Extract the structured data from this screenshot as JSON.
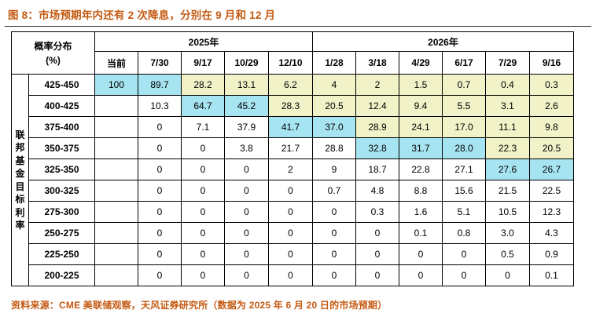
{
  "title": "图 8：市场预期年内还有 2 次降息，分别在 9 月和 12 月",
  "source_note": "资料来源：CME 美联储观察，天风证券研究所（数据为 2025 年 6 月 20 日的市场预期）",
  "colors": {
    "accent_text": "#c45911",
    "column_max_highlight": "#a7e4f1",
    "above_max_highlight": "#f1f2c8",
    "table_border": "#000000"
  },
  "chart_data": {
    "type": "table",
    "corner_label": [
      "概率分布",
      "(%)"
    ],
    "side_label": "联邦基金目标利率",
    "year_groups": [
      {
        "label": "2025年",
        "span": 5
      },
      {
        "label": "2026年",
        "span": 6
      }
    ],
    "columns": [
      "当前",
      "7/30",
      "9/17",
      "10/29",
      "12/10",
      "1/28",
      "3/18",
      "4/29",
      "6/17",
      "7/29",
      "9/16"
    ],
    "rows": [
      {
        "label": "425-450",
        "values": [
          "100",
          "89.7",
          "28.2",
          "13.1",
          "6.2",
          "4",
          "2",
          "1.5",
          "0.7",
          "0.4",
          "0.3"
        ]
      },
      {
        "label": "400-425",
        "values": [
          "",
          "10.3",
          "64.7",
          "45.2",
          "28.3",
          "20.5",
          "12.4",
          "9.4",
          "5.5",
          "3.1",
          "2.6"
        ]
      },
      {
        "label": "375-400",
        "values": [
          "",
          "0",
          "7.1",
          "37.9",
          "41.7",
          "37.0",
          "28.9",
          "24.1",
          "17.0",
          "11.1",
          "9.8"
        ]
      },
      {
        "label": "350-375",
        "values": [
          "",
          "0",
          "0",
          "3.8",
          "21.7",
          "28.8",
          "32.8",
          "31.7",
          "28.0",
          "22.3",
          "20.5"
        ]
      },
      {
        "label": "325-350",
        "values": [
          "",
          "0",
          "0",
          "0",
          "2",
          "9",
          "18.7",
          "22.8",
          "27.1",
          "27.6",
          "26.7"
        ]
      },
      {
        "label": "300-325",
        "values": [
          "",
          "0",
          "0",
          "0",
          "0",
          "0.7",
          "4.8",
          "8.8",
          "15.6",
          "21.5",
          "22.5"
        ]
      },
      {
        "label": "275-300",
        "values": [
          "",
          "0",
          "0",
          "0",
          "0",
          "0",
          "0.3",
          "1.6",
          "5.1",
          "10.5",
          "12.3"
        ]
      },
      {
        "label": "250-275",
        "values": [
          "",
          "0",
          "0",
          "0",
          "0",
          "0",
          "0",
          "0.1",
          "0.8",
          "3.0",
          "4.3"
        ]
      },
      {
        "label": "225-250",
        "values": [
          "",
          "0",
          "0",
          "0",
          "0",
          "0",
          "0",
          "0",
          "0",
          "0.5",
          "0.9"
        ]
      },
      {
        "label": "200-225",
        "values": [
          "",
          "0",
          "0",
          "0",
          "0",
          "0",
          "0",
          "0",
          "0",
          "0",
          "0.1"
        ]
      }
    ]
  }
}
